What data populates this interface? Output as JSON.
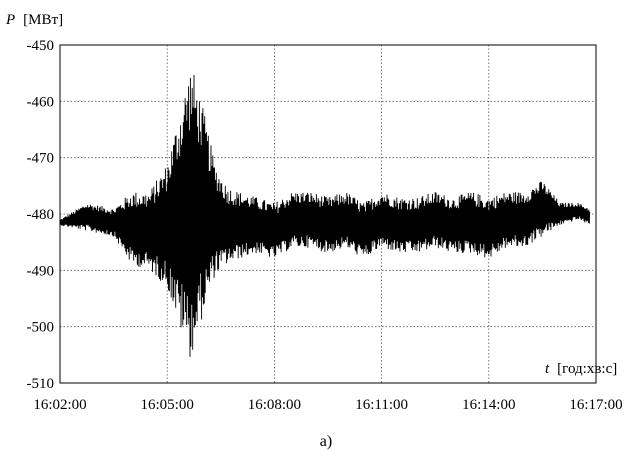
{
  "chart_data": {
    "type": "line",
    "ylabel_symbol": "P",
    "ylabel_unit": "[МВт]",
    "xlabel_symbol": "t",
    "xlabel_unit": "[год:хв:с]",
    "panel_label": "а)",
    "ylim": [
      -510,
      -450
    ],
    "yticks": [
      -450,
      -460,
      -470,
      -480,
      -490,
      -500,
      -510
    ],
    "ytick_labels": [
      "-450",
      "-460",
      "-470",
      "-480",
      "-490",
      "-500",
      "-510"
    ],
    "xlim": [
      "16:02:00",
      "16:17:00"
    ],
    "xticks": [
      "16:02:00",
      "16:05:00",
      "16:08:00",
      "16:11:00",
      "16:14:00",
      "16:17:00"
    ],
    "xtick_labels": [
      "16:02:00",
      "16:05:00",
      "16:08:00",
      "16:11:00",
      "16:14:00",
      "16:17:00"
    ],
    "grid": true,
    "series": [
      {
        "color": "#000000",
        "envelope": {
          "x": [
            "16:02:00",
            "16:02:45",
            "16:03:30",
            "16:04:00",
            "16:04:30",
            "16:05:00",
            "16:05:20",
            "16:05:40",
            "16:06:00",
            "16:06:20",
            "16:06:40",
            "16:07:00",
            "16:07:30",
            "16:08:00",
            "16:08:30",
            "16:09:00",
            "16:09:30",
            "16:10:00",
            "16:10:30",
            "16:11:00",
            "16:11:30",
            "16:12:00",
            "16:12:30",
            "16:13:00",
            "16:13:30",
            "16:14:00",
            "16:14:30",
            "16:15:00",
            "16:15:30",
            "16:16:00",
            "16:16:30",
            "16:16:50"
          ],
          "upper": [
            -481,
            -478,
            -479,
            -476,
            -476,
            -471,
            -462,
            -453,
            -461,
            -471,
            -475,
            -476,
            -477,
            -478,
            -476,
            -476,
            -477,
            -476,
            -478,
            -476,
            -477,
            -477,
            -476,
            -477,
            -476,
            -477,
            -476,
            -476,
            -474,
            -478,
            -478,
            -479
          ],
          "lower": [
            -482,
            -483,
            -484,
            -489,
            -490,
            -493,
            -500,
            -506,
            -498,
            -491,
            -489,
            -488,
            -487,
            -488,
            -486,
            -486,
            -487,
            -486,
            -488,
            -486,
            -487,
            -487,
            -486,
            -487,
            -487,
            -488,
            -486,
            -486,
            -484,
            -482,
            -481,
            -482
          ]
        }
      }
    ]
  }
}
